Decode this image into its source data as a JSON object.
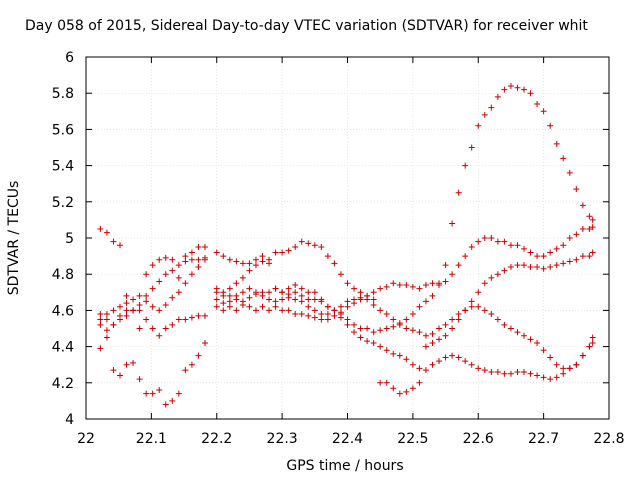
{
  "chart_data": {
    "type": "scatter",
    "title": "Day 058 of 2015, Sidereal Day-to-day VTEC variation (SDTVAR) for receiver whit",
    "xlabel": "GPS time / hours",
    "ylabel": "SDTVAR / TECUs",
    "xlim": [
      22,
      22.8
    ],
    "ylim": [
      4,
      6
    ],
    "xticks": [
      "22",
      "22.1",
      "22.2",
      "22.3",
      "22.4",
      "22.5",
      "22.6",
      "22.7",
      "22.8"
    ],
    "yticks": [
      "4",
      "4.2",
      "4.4",
      "4.6",
      "4.8",
      "5",
      "5.2",
      "5.4",
      "5.6",
      "5.8",
      "6"
    ],
    "grid": true,
    "marker": "+",
    "point_color": "#cc0000",
    "series": [
      {
        "x": [
          22.022,
          22.032,
          22.042,
          22.052,
          22.062,
          22.072,
          22.082,
          22.092,
          22.102,
          22.112,
          22.122,
          22.132,
          22.142,
          22.152,
          22.162,
          22.172,
          22.182,
          22.2,
          22.21,
          22.22,
          22.23,
          22.24,
          22.25,
          22.26,
          22.27,
          22.28,
          22.29,
          22.3,
          22.31,
          22.32,
          22.33,
          22.34,
          22.35,
          22.36,
          22.37,
          22.38,
          22.39,
          22.4,
          22.41,
          22.42,
          22.43,
          22.44,
          22.45,
          22.46,
          22.47,
          22.48,
          22.49,
          22.5,
          22.51,
          22.52,
          22.53,
          22.54,
          22.55,
          22.56,
          22.57,
          22.58,
          22.59,
          22.6,
          22.61,
          22.62,
          22.63,
          22.64,
          22.65,
          22.66,
          22.67,
          22.68,
          22.69,
          22.7,
          22.71,
          22.72,
          22.73,
          22.74,
          22.75,
          22.76,
          22.77,
          22.775
        ],
        "y": [
          5.05,
          5.03,
          4.98,
          4.96,
          4.68,
          4.6,
          4.5,
          4.8,
          4.85,
          4.88,
          4.89,
          4.88,
          4.78,
          4.9,
          4.92,
          4.95,
          4.95,
          4.92,
          4.9,
          4.88,
          4.87,
          4.86,
          4.86,
          4.88,
          4.9,
          4.86,
          4.72,
          4.7,
          4.69,
          4.7,
          4.68,
          4.66,
          4.66,
          4.65,
          4.62,
          4.6,
          4.58,
          4.55,
          4.52,
          4.5,
          4.5,
          4.48,
          4.49,
          4.5,
          4.51,
          4.53,
          4.55,
          4.58,
          4.62,
          4.65,
          4.68,
          4.75,
          4.85,
          5.08,
          5.25,
          5.4,
          5.5,
          5.62,
          5.68,
          5.72,
          5.78,
          5.82,
          5.84,
          5.83,
          5.82,
          5.8,
          5.74,
          5.7,
          5.62,
          5.52,
          5.44,
          5.36,
          5.27,
          5.18,
          5.12,
          5.1
        ]
      },
      {
        "x": [
          22.022,
          22.032,
          22.042,
          22.052,
          22.062,
          22.072,
          22.082,
          22.092,
          22.102,
          22.112,
          22.122,
          22.132,
          22.142,
          22.152,
          22.162,
          22.172,
          22.182,
          22.2,
          22.21,
          22.22,
          22.23,
          22.24,
          22.25,
          22.26,
          22.27,
          22.28,
          22.29,
          22.3,
          22.31,
          22.32,
          22.33,
          22.34,
          22.35,
          22.36,
          22.37,
          22.38,
          22.39,
          22.4,
          22.41,
          22.42,
          22.43,
          22.44,
          22.45,
          22.46,
          22.47,
          22.48,
          22.49,
          22.5,
          22.51,
          22.52,
          22.53,
          22.54,
          22.55,
          22.56,
          22.57,
          22.58,
          22.59,
          22.6,
          22.61,
          22.62,
          22.63,
          22.64,
          22.65,
          22.66,
          22.67,
          22.68,
          22.69,
          22.7,
          22.71,
          22.72,
          22.73,
          22.74,
          22.75,
          22.76,
          22.77,
          22.775
        ],
        "y": [
          4.58,
          4.55,
          4.52,
          4.55,
          4.57,
          4.6,
          4.6,
          4.55,
          4.5,
          4.46,
          4.5,
          4.52,
          4.55,
          4.55,
          4.56,
          4.57,
          4.57,
          4.62,
          4.6,
          4.62,
          4.6,
          4.63,
          4.62,
          4.6,
          4.62,
          4.6,
          4.62,
          4.6,
          4.6,
          4.58,
          4.58,
          4.57,
          4.56,
          4.55,
          4.55,
          4.57,
          4.59,
          4.62,
          4.64,
          4.66,
          4.68,
          4.7,
          4.72,
          4.73,
          4.75,
          4.74,
          4.74,
          4.73,
          4.72,
          4.74,
          4.75,
          4.74,
          4.76,
          4.8,
          4.85,
          4.9,
          4.95,
          4.98,
          5.0,
          5.0,
          4.98,
          4.98,
          4.96,
          4.96,
          4.94,
          4.92,
          4.9,
          4.9,
          4.92,
          4.94,
          4.96,
          5.0,
          5.02,
          5.05,
          5.05,
          5.06
        ]
      },
      {
        "x": [
          22.022,
          22.032,
          22.042,
          22.052,
          22.062,
          22.072,
          22.082,
          22.092,
          22.102,
          22.112,
          22.122,
          22.132,
          22.142,
          22.152,
          22.162,
          22.172,
          22.182,
          22.2,
          22.21,
          22.22,
          22.23,
          22.24,
          22.25,
          22.26,
          22.27,
          22.28,
          22.29,
          22.3,
          22.31,
          22.32,
          22.33,
          22.34,
          22.35,
          22.36,
          22.37,
          22.38,
          22.39,
          22.4,
          22.41,
          22.42,
          22.43,
          22.44,
          22.45,
          22.46,
          22.47,
          22.48,
          22.49,
          22.5,
          22.51,
          22.52,
          22.53,
          22.54,
          22.55,
          22.56,
          22.57,
          22.58,
          22.59,
          22.6,
          22.61,
          22.62,
          22.63,
          22.64,
          22.65,
          22.66,
          22.67,
          22.68,
          22.69,
          22.7,
          22.71,
          22.72,
          22.73,
          22.74,
          22.75,
          22.76,
          22.77,
          22.775
        ],
        "y": [
          4.39,
          4.45,
          4.52,
          4.57,
          4.6,
          4.6,
          4.63,
          4.68,
          4.72,
          4.76,
          4.8,
          4.82,
          4.85,
          4.87,
          4.88,
          4.88,
          4.89,
          4.7,
          4.68,
          4.72,
          4.75,
          4.78,
          4.82,
          4.85,
          4.87,
          4.88,
          4.92,
          4.92,
          4.93,
          4.95,
          4.98,
          4.97,
          4.96,
          4.95,
          4.9,
          4.86,
          4.8,
          4.75,
          4.72,
          4.7,
          4.68,
          4.66,
          4.6,
          4.58,
          4.55,
          4.52,
          4.5,
          4.49,
          4.48,
          4.46,
          4.47,
          4.5,
          4.52,
          4.55,
          4.58,
          4.6,
          4.62,
          4.62,
          4.6,
          4.58,
          4.55,
          4.52,
          4.5,
          4.48,
          4.46,
          4.44,
          4.42,
          4.38,
          4.34,
          4.3,
          4.28,
          4.28,
          4.3,
          4.35,
          4.4,
          4.45
        ]
      },
      {
        "x": [
          22.022,
          22.032,
          22.042,
          22.052,
          22.062,
          22.072,
          22.082,
          22.092,
          22.102,
          22.112,
          22.122,
          22.132,
          22.142,
          22.152,
          22.162,
          22.172,
          22.182,
          22.2,
          22.21,
          22.22,
          22.23,
          22.24,
          22.25,
          22.26,
          22.27,
          22.28,
          22.29,
          22.3,
          22.31,
          22.32,
          22.33,
          22.34,
          22.35,
          22.36,
          22.37,
          22.38,
          22.39,
          22.4,
          22.41,
          22.42,
          22.43,
          22.44,
          22.45,
          22.46,
          22.47,
          22.48,
          22.49,
          22.5,
          22.51,
          22.52,
          22.53,
          22.54,
          22.55,
          22.56,
          22.57,
          22.58,
          22.59,
          22.6,
          22.61,
          22.62,
          22.63,
          22.64,
          22.65,
          22.66,
          22.67,
          22.68,
          22.69,
          22.7,
          22.71,
          22.72,
          22.73,
          22.74,
          22.75,
          22.76,
          22.77,
          22.775
        ],
        "y": [
          4.55,
          4.58,
          4.6,
          4.62,
          4.64,
          4.66,
          4.68,
          4.65,
          4.62,
          4.6,
          4.63,
          4.67,
          4.7,
          4.75,
          4.8,
          4.84,
          4.88,
          4.72,
          4.7,
          4.68,
          4.66,
          4.65,
          4.67,
          4.69,
          4.7,
          4.7,
          4.72,
          4.7,
          4.72,
          4.74,
          4.72,
          4.7,
          4.7,
          4.66,
          4.62,
          4.6,
          4.56,
          4.52,
          4.48,
          4.45,
          4.43,
          4.42,
          4.4,
          4.38,
          4.36,
          4.35,
          4.33,
          4.3,
          4.28,
          4.27,
          4.3,
          4.32,
          4.34,
          4.35,
          4.34,
          4.32,
          4.3,
          4.28,
          4.27,
          4.26,
          4.26,
          4.25,
          4.25,
          4.26,
          4.26,
          4.25,
          4.24,
          4.23,
          4.22,
          4.23,
          4.25,
          4.28,
          4.3,
          4.35,
          4.4,
          4.42
        ]
      },
      {
        "x": [
          22.022,
          22.032,
          22.042,
          22.052,
          22.062,
          22.072,
          22.082,
          22.092,
          22.102,
          22.112,
          22.122,
          22.132,
          22.142,
          22.152,
          22.162,
          22.172,
          22.182,
          22.2,
          22.21,
          22.22,
          22.23,
          22.24,
          22.25,
          22.26,
          22.27,
          22.28,
          22.29,
          22.3,
          22.31,
          22.32,
          22.33,
          22.34,
          22.35,
          22.36,
          22.37,
          22.38,
          22.39,
          22.4,
          22.41,
          22.42,
          22.43,
          22.44,
          22.45,
          22.46,
          22.47,
          22.48,
          22.49,
          22.5,
          22.51,
          22.52,
          22.53,
          22.54,
          22.55,
          22.56,
          22.57,
          22.58,
          22.59,
          22.6,
          22.61,
          22.62,
          22.63,
          22.64,
          22.65,
          22.66,
          22.67,
          22.68,
          22.69,
          22.7,
          22.71,
          22.72,
          22.73,
          22.74,
          22.75,
          22.76,
          22.77,
          22.775
        ],
        "y": [
          4.52,
          4.49,
          4.27,
          4.24,
          4.3,
          4.31,
          4.22,
          4.14,
          4.14,
          4.16,
          4.08,
          4.1,
          4.14,
          4.27,
          4.3,
          4.35,
          4.42,
          4.66,
          4.64,
          4.65,
          4.68,
          4.7,
          4.72,
          4.7,
          4.68,
          4.66,
          4.65,
          4.66,
          4.67,
          4.66,
          4.65,
          4.62,
          4.6,
          4.58,
          4.58,
          4.6,
          4.62,
          4.65,
          4.66,
          4.67,
          4.66,
          4.63,
          4.2,
          4.2,
          4.17,
          4.14,
          4.15,
          4.17,
          4.2,
          4.4,
          4.42,
          4.44,
          4.46,
          4.5,
          4.55,
          4.6,
          4.65,
          4.7,
          4.75,
          4.78,
          4.8,
          4.82,
          4.84,
          4.85,
          4.85,
          4.84,
          4.84,
          4.83,
          4.84,
          4.85,
          4.86,
          4.87,
          4.88,
          4.9,
          4.9,
          4.92
        ]
      }
    ]
  }
}
